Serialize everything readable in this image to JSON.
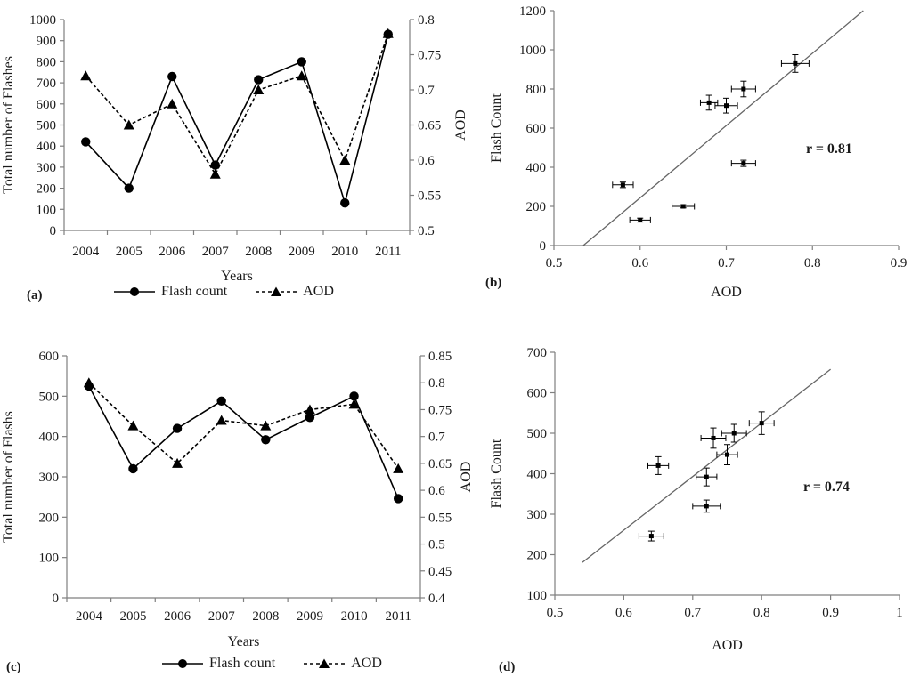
{
  "figure": {
    "background": "#ffffff",
    "text_color": "#1a1a1a",
    "axis_color": "#7f7f7f",
    "series_color": "#000000",
    "trendline_color": "#666666"
  },
  "chart_data": [
    {
      "id": "a",
      "type": "line",
      "panel_label": "(a)",
      "xlabel": "Years",
      "categories": [
        "2004",
        "2005",
        "2006",
        "2007",
        "2008",
        "2009",
        "2010",
        "2011"
      ],
      "left_axis": {
        "label": "Total number of Flashes",
        "min": 0,
        "max": 1000,
        "step": 100
      },
      "right_axis": {
        "label": "AOD",
        "min": 0.5,
        "max": 0.8,
        "step": 0.05
      },
      "legend_position": "bottom",
      "series": [
        {
          "name": "AOD",
          "axis": "right",
          "marker": "triangle",
          "line": "dashed",
          "values": [
            0.72,
            0.65,
            0.68,
            0.58,
            0.7,
            0.72,
            0.6,
            0.78
          ]
        },
        {
          "name": "Flash count",
          "axis": "left",
          "marker": "circle",
          "line": "solid",
          "values": [
            420,
            200,
            730,
            310,
            715,
            800,
            130,
            930
          ]
        }
      ]
    },
    {
      "id": "b",
      "type": "scatter",
      "panel_label": "(b)",
      "xlabel": "AOD",
      "ylabel": "Flash Count",
      "x_axis": {
        "min": 0.5,
        "max": 0.9,
        "step": 0.1
      },
      "y_axis": {
        "min": 0,
        "max": 1200,
        "step": 200
      },
      "correlation_label": "r = 0.81",
      "trendline": {
        "x1": 0.534,
        "y1": 0,
        "x2": 0.859,
        "y2": 1200
      },
      "points": [
        {
          "x": 0.58,
          "y": 310,
          "xerr": 0.012,
          "yerr": 14
        },
        {
          "x": 0.6,
          "y": 130,
          "xerr": 0.012,
          "yerr": 10
        },
        {
          "x": 0.65,
          "y": 200,
          "xerr": 0.013,
          "yerr": 8
        },
        {
          "x": 0.68,
          "y": 730,
          "xerr": 0.01,
          "yerr": 38
        },
        {
          "x": 0.7,
          "y": 715,
          "xerr": 0.013,
          "yerr": 38
        },
        {
          "x": 0.72,
          "y": 800,
          "xerr": 0.014,
          "yerr": 40
        },
        {
          "x": 0.72,
          "y": 420,
          "xerr": 0.014,
          "yerr": 16
        },
        {
          "x": 0.78,
          "y": 930,
          "xerr": 0.016,
          "yerr": 45
        }
      ]
    },
    {
      "id": "c",
      "type": "line",
      "panel_label": "(c)",
      "xlabel": "Years",
      "categories": [
        "2004",
        "2005",
        "2006",
        "2007",
        "2008",
        "2009",
        "2010",
        "2011"
      ],
      "left_axis": {
        "label": "Total number of Flashs",
        "min": 0,
        "max": 600,
        "step": 100
      },
      "right_axis": {
        "label": "AOD",
        "min": 0.4,
        "max": 0.85,
        "step": 0.05
      },
      "legend_position": "bottom",
      "series": [
        {
          "name": "AOD",
          "axis": "right",
          "marker": "triangle",
          "line": "dashed",
          "values": [
            0.8,
            0.72,
            0.65,
            0.73,
            0.72,
            0.75,
            0.76,
            0.64
          ]
        },
        {
          "name": "Flash count",
          "axis": "left",
          "marker": "circle",
          "line": "solid",
          "values": [
            525,
            320,
            420,
            488,
            392,
            447,
            500,
            246
          ]
        }
      ]
    },
    {
      "id": "d",
      "type": "scatter",
      "panel_label": "(d)",
      "xlabel": "AOD",
      "ylabel": "Flash Count",
      "x_axis": {
        "min": 0.5,
        "max": 1.0,
        "step": 0.1
      },
      "y_axis": {
        "min": 100,
        "max": 700,
        "step": 100
      },
      "correlation_label": "r = 0.74",
      "trendline": {
        "x1": 0.54,
        "y1": 181,
        "x2": 0.9,
        "y2": 658
      },
      "points": [
        {
          "x": 0.64,
          "y": 246,
          "xerr": 0.018,
          "yerr": 12
        },
        {
          "x": 0.65,
          "y": 420,
          "xerr": 0.015,
          "yerr": 22
        },
        {
          "x": 0.72,
          "y": 320,
          "xerr": 0.02,
          "yerr": 15
        },
        {
          "x": 0.72,
          "y": 392,
          "xerr": 0.015,
          "yerr": 22
        },
        {
          "x": 0.73,
          "y": 488,
          "xerr": 0.018,
          "yerr": 25
        },
        {
          "x": 0.75,
          "y": 447,
          "xerr": 0.015,
          "yerr": 25
        },
        {
          "x": 0.76,
          "y": 500,
          "xerr": 0.018,
          "yerr": 22
        },
        {
          "x": 0.8,
          "y": 525,
          "xerr": 0.018,
          "yerr": 28
        }
      ]
    }
  ]
}
